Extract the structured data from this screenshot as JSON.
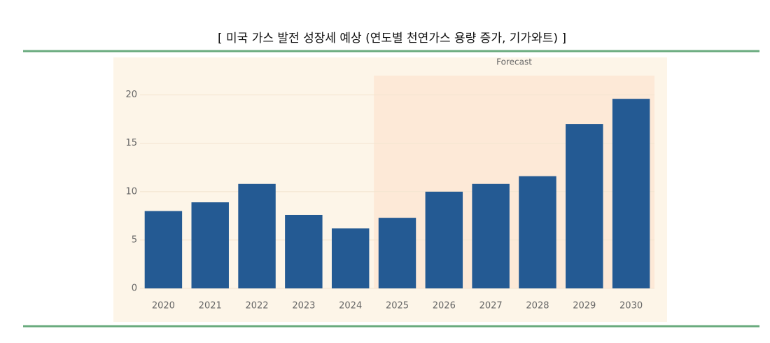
{
  "chart_data": {
    "type": "bar",
    "title": "[ 미국 가스 발전 성장세 예상 (연도별 천연가스 용량 증가, 기가와트) ]",
    "categories": [
      "2020",
      "2021",
      "2022",
      "2023",
      "2024",
      "2025",
      "2026",
      "2027",
      "2028",
      "2029",
      "2030"
    ],
    "values": [
      8.0,
      8.9,
      10.8,
      7.6,
      6.2,
      7.3,
      10.0,
      10.8,
      11.6,
      17.0,
      19.6
    ],
    "color": "#245a93",
    "ylim": [
      0,
      22
    ],
    "yticks": [
      0,
      5,
      10,
      15,
      20
    ],
    "grid": true,
    "forecast_label": "Forecast",
    "forecast_from": "2025",
    "forecast_color": "#fde9d7"
  }
}
